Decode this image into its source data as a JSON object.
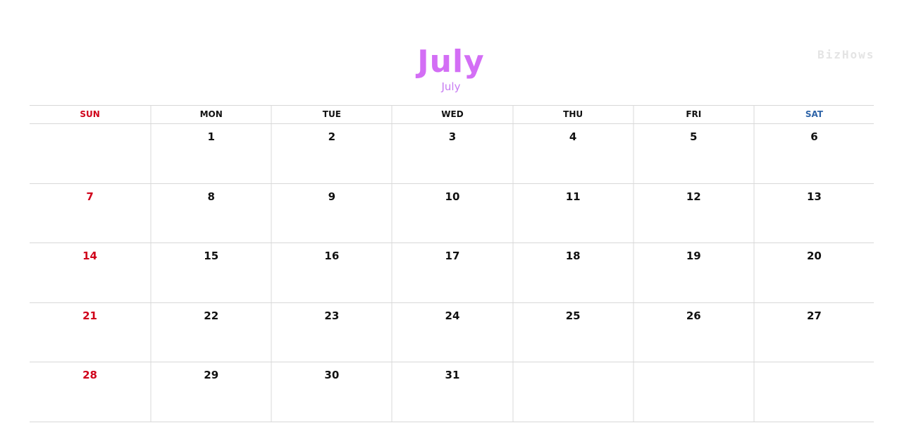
{
  "title": "July",
  "subtitle": "July",
  "watermark": "BizHows",
  "colors": {
    "title": "#d36ef5",
    "sunday": "#d0021b",
    "saturday": "#2e64a8"
  },
  "weekdays": [
    "SUN",
    "MON",
    "TUE",
    "WED",
    "THU",
    "FRI",
    "SAT"
  ],
  "weeks": [
    [
      "",
      "1",
      "2",
      "3",
      "4",
      "5",
      "6"
    ],
    [
      "7",
      "8",
      "9",
      "10",
      "11",
      "12",
      "13"
    ],
    [
      "14",
      "15",
      "16",
      "17",
      "18",
      "19",
      "20"
    ],
    [
      "21",
      "22",
      "23",
      "24",
      "25",
      "26",
      "27"
    ],
    [
      "28",
      "29",
      "30",
      "31",
      "",
      "",
      ""
    ]
  ]
}
